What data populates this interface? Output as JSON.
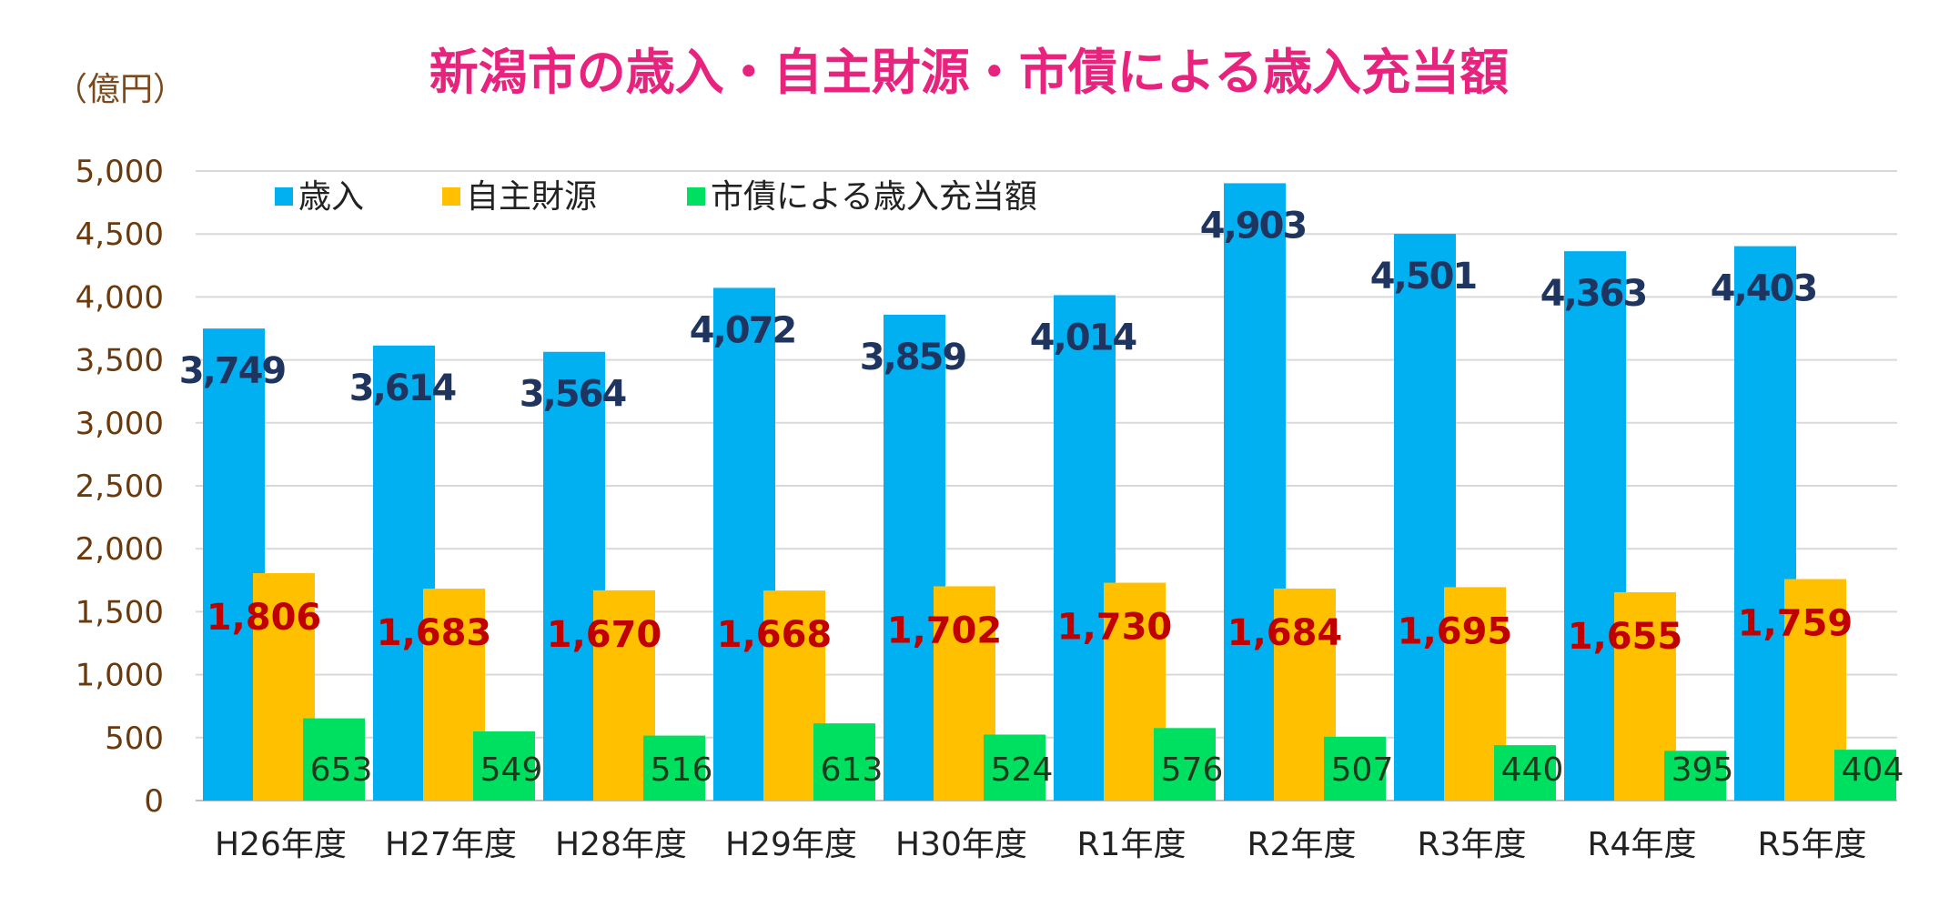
{
  "chart_data": {
    "type": "bar",
    "title": "新潟市の歳入・自主財源・市債による歳入充当額",
    "ylabel": "（億円）",
    "xlabel": "",
    "ylim": [
      0,
      5000
    ],
    "yticks": [
      0,
      500,
      1000,
      1500,
      2000,
      2500,
      3000,
      3500,
      4000,
      4500,
      5000
    ],
    "ytick_labels": [
      "0",
      "500",
      "1,000",
      "1,500",
      "2,000",
      "2,500",
      "3,000",
      "3,500",
      "4,000",
      "4,500",
      "5,000"
    ],
    "grid": true,
    "legend_position": "top-left",
    "categories": [
      "H26年度",
      "H27年度",
      "H28年度",
      "H29年度",
      "H30年度",
      "R1年度",
      "R2年度",
      "R3年度",
      "R4年度",
      "R5年度"
    ],
    "series": [
      {
        "name": "歳入",
        "color": "#00b0f0",
        "values": [
          3749,
          3614,
          3564,
          4072,
          3859,
          4014,
          4903,
          4501,
          4363,
          4403
        ],
        "labels": [
          "3,749",
          "3,614",
          "3,564",
          "4,072",
          "3,859",
          "4,014",
          "4,903",
          "4,501",
          "4,363",
          "4,403"
        ]
      },
      {
        "name": "自主財源",
        "color": "#ffc000",
        "values": [
          1806,
          1683,
          1670,
          1668,
          1702,
          1730,
          1684,
          1695,
          1655,
          1759
        ],
        "labels": [
          "1,806",
          "1,683",
          "1,670",
          "1,668",
          "1,702",
          "1,730",
          "1,684",
          "1,695",
          "1,655",
          "1,759"
        ]
      },
      {
        "name": "市債による歳入充当額",
        "color": "#00e060",
        "values": [
          653,
          549,
          516,
          613,
          524,
          576,
          507,
          440,
          395,
          404
        ],
        "labels": [
          "653",
          "549",
          "516",
          "613",
          "524",
          "576",
          "507",
          "440",
          "395",
          "404"
        ]
      }
    ]
  }
}
